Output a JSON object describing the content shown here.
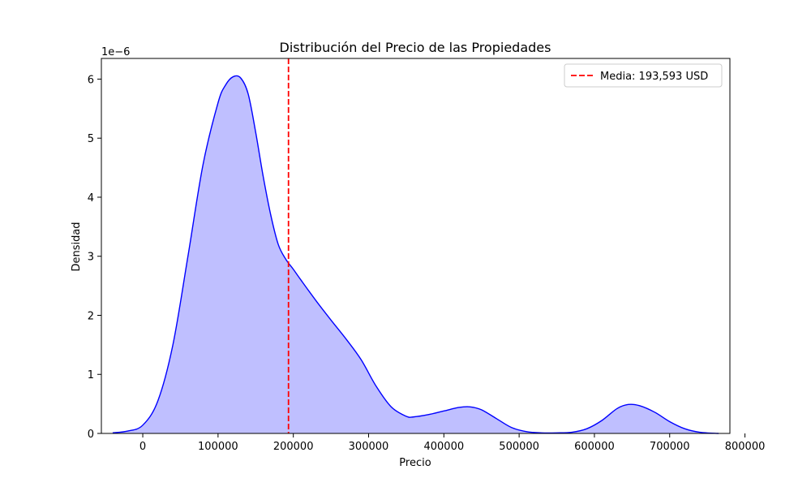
{
  "chart_data": {
    "type": "area",
    "title": "Distribución del Precio de las Propiedades",
    "xlabel": "Precio",
    "ylabel": "Densidad",
    "y_offset_label": "1e−6",
    "xlim": [
      -55000,
      780000
    ],
    "ylim": [
      0,
      6.35
    ],
    "x_ticks": [
      0,
      100000,
      200000,
      300000,
      400000,
      500000,
      600000,
      700000,
      800000
    ],
    "y_ticks": [
      0,
      1,
      2,
      3,
      4,
      5,
      6
    ],
    "grid": false,
    "legend_position": "top-right",
    "series": [
      {
        "kind": "kde",
        "color": "#0000ff",
        "fill_color": "#0000ff",
        "fill_opacity": 0.25,
        "x": [
          -40000,
          -20000,
          0,
          20000,
          40000,
          60000,
          80000,
          100000,
          110000,
          120000,
          130000,
          140000,
          150000,
          160000,
          170000,
          180000,
          190000,
          200000,
          210000,
          230000,
          250000,
          270000,
          290000,
          310000,
          330000,
          350000,
          360000,
          380000,
          400000,
          420000,
          435000,
          450000,
          470000,
          490000,
          510000,
          530000,
          550000,
          570000,
          590000,
          610000,
          630000,
          645000,
          660000,
          680000,
          700000,
          720000,
          740000,
          765000
        ],
        "y": [
          0.01,
          0.04,
          0.14,
          0.55,
          1.5,
          3.0,
          4.55,
          5.6,
          5.9,
          6.04,
          6.02,
          5.75,
          5.1,
          4.35,
          3.7,
          3.2,
          2.95,
          2.78,
          2.6,
          2.25,
          1.92,
          1.6,
          1.25,
          0.8,
          0.45,
          0.29,
          0.28,
          0.32,
          0.38,
          0.44,
          0.45,
          0.4,
          0.25,
          0.1,
          0.03,
          0.01,
          0.01,
          0.02,
          0.08,
          0.22,
          0.42,
          0.49,
          0.47,
          0.36,
          0.2,
          0.08,
          0.02,
          0.0
        ]
      },
      {
        "name": "Media: 193,593 USD",
        "kind": "vline",
        "x": 193593,
        "color": "#ff0000",
        "style": "dashed"
      }
    ]
  }
}
